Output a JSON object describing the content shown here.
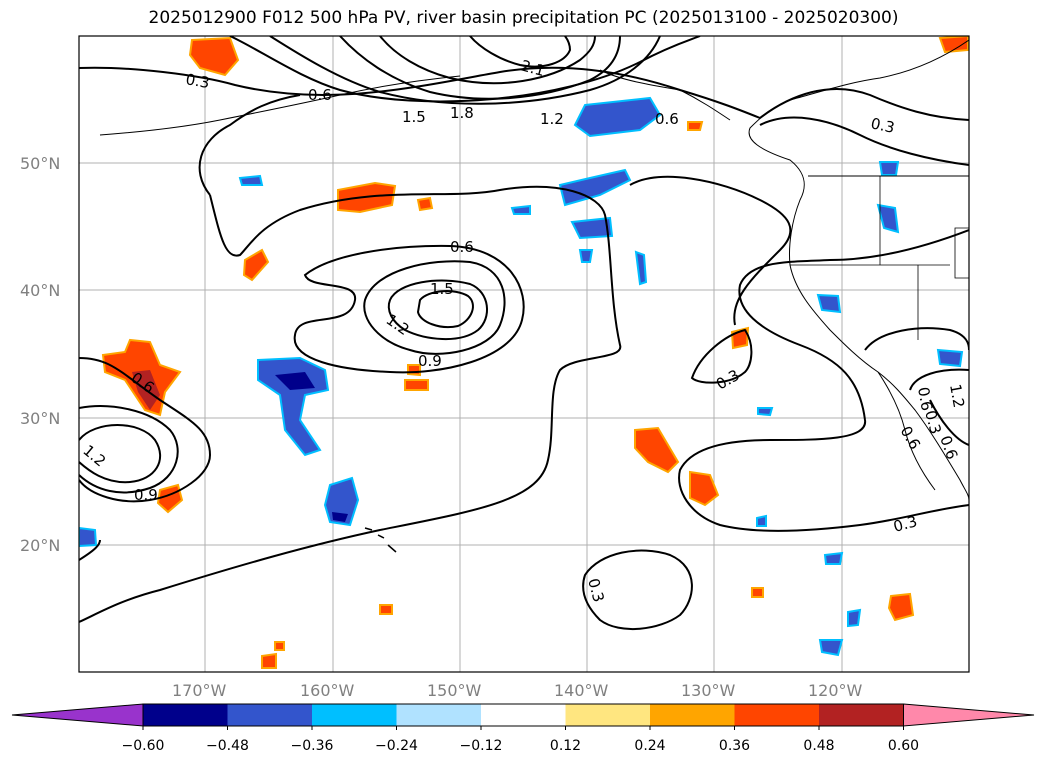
{
  "title": "2025012900 F012 500 hPa PV, river basin precipitation PC (2025013100 - 2025020300)",
  "lat_labels": [
    "50°N",
    "40°N",
    "30°N",
    "20°N"
  ],
  "lon_labels": [
    "170°W",
    "160°W",
    "150°W",
    "140°W",
    "130°W",
    "120°W"
  ],
  "contour_labels": [
    "0.3",
    "0.6",
    "2.1",
    "1.5",
    "1.8",
    "1.2",
    "0.6",
    "0.3",
    "0.6",
    "1.5",
    "1.2",
    "0.9",
    "0.6",
    "1.2",
    "0.9",
    "0.3",
    "0.3",
    "0.6",
    "1.2",
    "0.3",
    "0.3",
    "0.6",
    "0.6"
  ],
  "colorbar": {
    "tick_labels": [
      "−0.60",
      "−0.48",
      "−0.36",
      "−0.24",
      "−0.12",
      "0.12",
      "0.24",
      "0.36",
      "0.48",
      "0.60"
    ],
    "colors": [
      "#9933cc",
      "#00008b",
      "#3355cc",
      "#00bfff",
      "#b0e2ff",
      "#ffffff",
      "#ffe680",
      "#ffa500",
      "#ff4500",
      "#b22222",
      "#ff88aa"
    ]
  },
  "colors": {
    "neg_strong": "#00008b",
    "neg_mid": "#3355cc",
    "neg_light": "#00bfff",
    "neg_pale": "#b0e2ff",
    "pos_pale": "#ffe680",
    "pos_mid": "#ffa500",
    "pos_strong": "#ff4500",
    "pos_dark": "#b22222",
    "grid": "#b0b0b0",
    "tick_label": "#808080"
  }
}
